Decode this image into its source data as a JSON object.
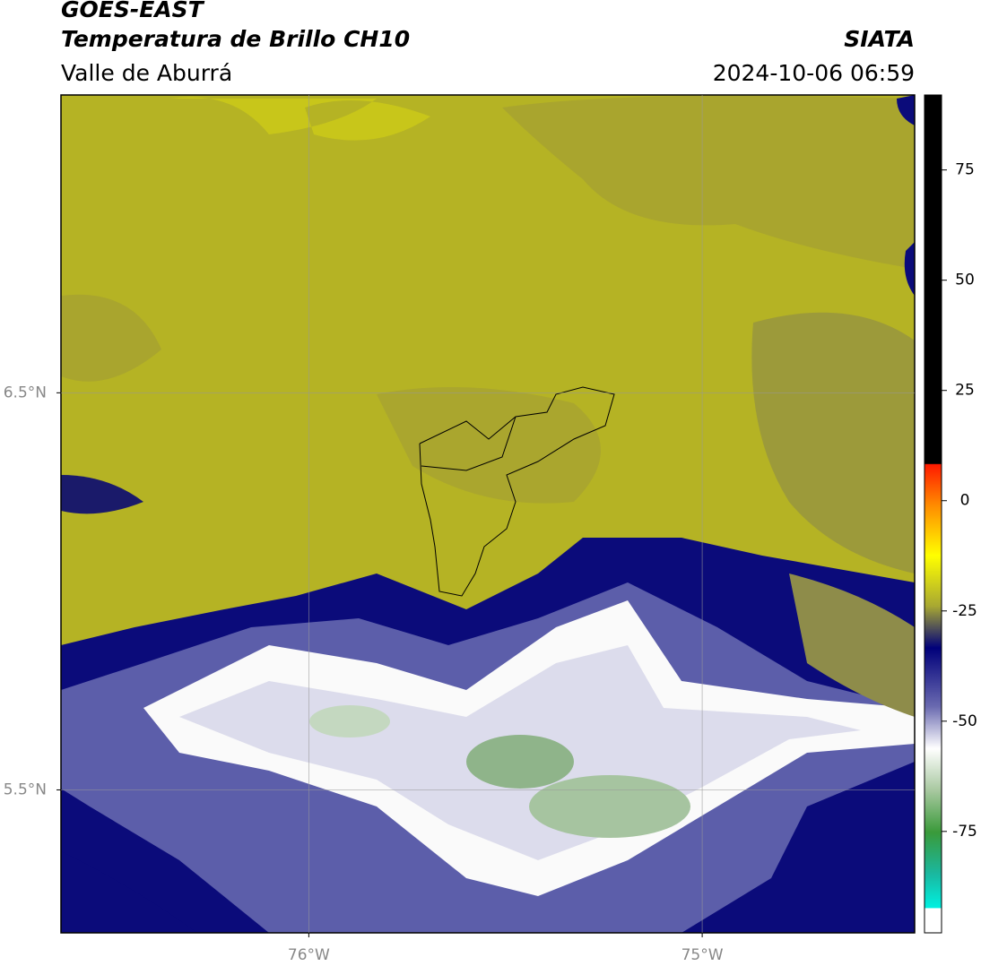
{
  "header": {
    "satellite": "GOES-EAST",
    "product": "Temperatura de Brillo CH10",
    "region": "Valle de Aburrá",
    "source": "SIATA",
    "datetime": "2024-10-06 06:59"
  },
  "map": {
    "xlim": [
      -76.63,
      -74.46
    ],
    "ylim": [
      5.14,
      7.25
    ],
    "xticks": [
      {
        "value": -76,
        "label": "76°W"
      },
      {
        "value": -75,
        "label": "75°W"
      }
    ],
    "yticks": [
      {
        "value": 5.5,
        "label": "5.5°N"
      },
      {
        "value": 6.5,
        "label": "6.5°N"
      }
    ],
    "grid": true
  },
  "colorbar": {
    "lim": [
      -98,
      92
    ],
    "ticks": [
      75,
      50,
      25,
      0,
      -25,
      -50,
      -75
    ]
  }
}
